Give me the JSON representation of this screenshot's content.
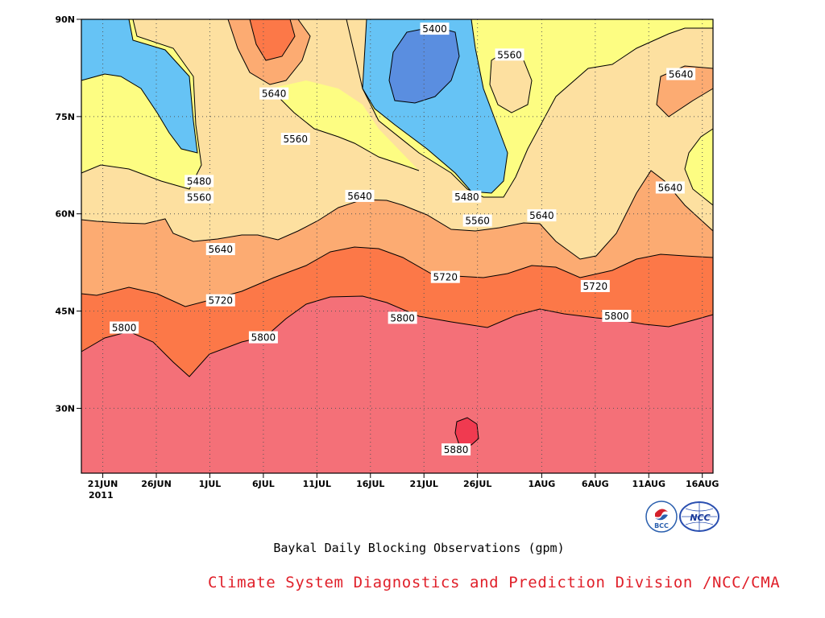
{
  "chart_data": {
    "type": "contour",
    "title": "Baykal Daily Blocking Observations (gpm)",
    "x_axis": {
      "ticks": [
        "21JUN",
        "26JUN",
        "1JUL",
        "6JUL",
        "11JUL",
        "16JUL",
        "21JUL",
        "26JUL",
        "1AUG",
        "6AUG",
        "11AUG",
        "16AUG"
      ],
      "sublabel": "2011",
      "range": [
        "2011-06-19",
        "2011-08-17"
      ]
    },
    "y_axis": {
      "ticks": [
        "90N",
        "75N",
        "60N",
        "45N",
        "30N"
      ],
      "tick_values": [
        90,
        75,
        60,
        45,
        30
      ],
      "range": [
        20,
        90
      ]
    },
    "grid": "dotted",
    "contour_levels": [
      5400,
      5480,
      5560,
      5640,
      5720,
      5800,
      5880
    ],
    "contour_labels": [
      {
        "text": "5400",
        "date": "2011-07-22",
        "lat": 88.5
      },
      {
        "text": "5560",
        "date": "2011-07-29",
        "lat": 84.5
      },
      {
        "text": "5640",
        "date": "2011-08-14",
        "lat": 81.5
      },
      {
        "text": "5640",
        "date": "2011-07-07",
        "lat": 78.5
      },
      {
        "text": "5560",
        "date": "2011-07-09",
        "lat": 71.5
      },
      {
        "text": "5480",
        "date": "2011-06-30",
        "lat": 65.0
      },
      {
        "text": "5640",
        "date": "2011-08-13",
        "lat": 64.0
      },
      {
        "text": "5560",
        "date": "2011-06-30",
        "lat": 62.5
      },
      {
        "text": "5480",
        "date": "2011-07-25",
        "lat": 62.6
      },
      {
        "text": "5640",
        "date": "2011-07-15",
        "lat": 62.7
      },
      {
        "text": "5560",
        "date": "2011-07-26",
        "lat": 58.9
      },
      {
        "text": "5640",
        "date": "2011-08-01",
        "lat": 59.7
      },
      {
        "text": "5640",
        "date": "2011-07-02",
        "lat": 54.5
      },
      {
        "text": "5720",
        "date": "2011-07-23",
        "lat": 50.2
      },
      {
        "text": "5720",
        "date": "2011-08-06",
        "lat": 48.8
      },
      {
        "text": "5720",
        "date": "2011-07-02",
        "lat": 46.6
      },
      {
        "text": "5800",
        "date": "2011-08-08",
        "lat": 44.2
      },
      {
        "text": "5800",
        "date": "2011-07-19",
        "lat": 43.9
      },
      {
        "text": "5800",
        "date": "2011-06-23",
        "lat": 42.4
      },
      {
        "text": "5800",
        "date": "2011-07-06",
        "lat": 40.9
      },
      {
        "text": "5880",
        "date": "2011-07-24",
        "lat": 23.6
      }
    ],
    "colors": {
      "below_5400": "#5a8ee0",
      "5400_5480": "#66c3f5",
      "5480_5560": "#fdfd82",
      "5560_5640": "#fde0a0",
      "5640_5720": "#fcab72",
      "5720_5800": "#fc7848",
      "5800_5880": "#f47078",
      "above_5880": "#f03a50"
    }
  },
  "footer": {
    "caption": "Baykal Daily Blocking Observations (gpm)",
    "credit": "Climate System Diagnostics and Prediction Division /NCC/CMA",
    "logo_bcc": "BCC",
    "logo_ncc": "NCC"
  }
}
